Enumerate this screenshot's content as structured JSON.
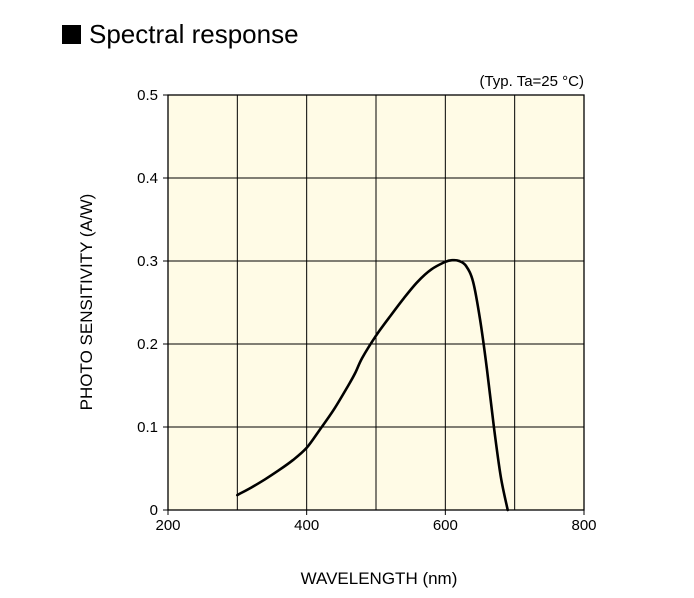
{
  "chart_data": {
    "type": "line",
    "title": "Spectral response",
    "condition": "(Typ. Ta=25 °C)",
    "xlabel": "WAVELENGTH (nm)",
    "ylabel": "PHOTO SENSITIVITY (A/W)",
    "xlim": [
      200,
      800
    ],
    "ylim": [
      0,
      0.5
    ],
    "x_ticks": [
      "200",
      "400",
      "600",
      "800"
    ],
    "y_ticks": [
      "0",
      "0.1",
      "0.2",
      "0.3",
      "0.4",
      "0.5"
    ],
    "grid": true,
    "background": "#fffbe6",
    "line_color": "#000000",
    "series": [
      {
        "x": [
          300,
          320,
          340,
          360,
          380,
          400,
          420,
          440,
          460,
          470,
          480,
          500,
          520,
          540,
          560,
          580,
          600,
          610,
          620,
          630,
          640,
          650,
          660,
          670,
          680,
          690
        ],
        "y": [
          0.018,
          0.027,
          0.037,
          0.048,
          0.06,
          0.075,
          0.098,
          0.122,
          0.15,
          0.165,
          0.183,
          0.21,
          0.233,
          0.255,
          0.275,
          0.29,
          0.299,
          0.301,
          0.3,
          0.294,
          0.275,
          0.23,
          0.17,
          0.1,
          0.04,
          0.0
        ]
      }
    ]
  }
}
